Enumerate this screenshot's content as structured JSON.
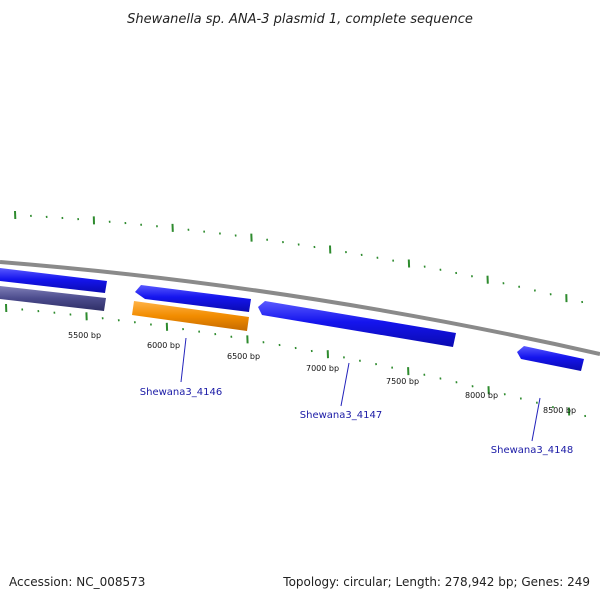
{
  "title": "Shewanella sp. ANA-3 plasmid 1, complete sequence",
  "footer": {
    "accession": "Accession: NC_008573",
    "summary": "Topology: circular; Length: 278,942 bp; Genes: 249"
  },
  "ruler_labels": [
    "5500 bp",
    "6000 bp",
    "6500 bp",
    "7000 bp",
    "7500 bp",
    "8000 bp",
    "8500 bp"
  ],
  "gene_labels": [
    "Shewana3_4146",
    "Shewana3_4147",
    "Shewana3_4148"
  ],
  "colors": {
    "cds": "#1010ee",
    "orange_feature": "#f08a00",
    "purple_feature": "#4a4a8a",
    "backbone": "#8a8a8a",
    "ticks": "#2e8b2e",
    "label_text": "#1a1aa6"
  }
}
